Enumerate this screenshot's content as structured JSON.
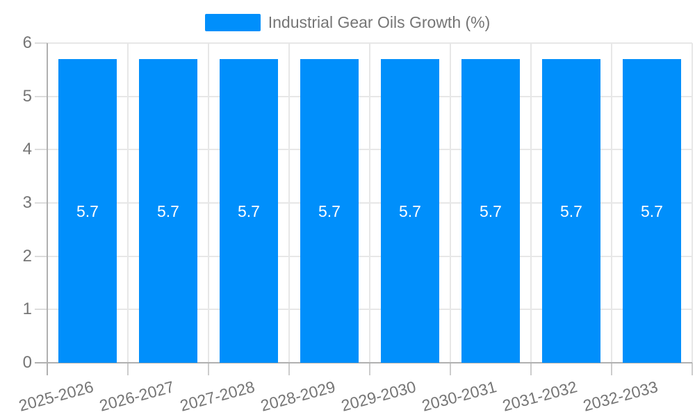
{
  "chart_data": {
    "type": "bar",
    "title": "",
    "xlabel": "",
    "ylabel": "",
    "legend": {
      "position": "top",
      "entries": [
        {
          "label": "Industrial Gear Oils Growth (%)",
          "color": "#008FFB"
        }
      ]
    },
    "categories": [
      "2025-2026",
      "2026-2027",
      "2027-2028",
      "2028-2029",
      "2029-2030",
      "2030-2031",
      "2031-2032",
      "2032-2033"
    ],
    "series": [
      {
        "name": "Industrial Gear Oils Growth (%)",
        "color": "#008FFB",
        "values": [
          5.7,
          5.7,
          5.7,
          5.7,
          5.7,
          5.7,
          5.7,
          5.7
        ],
        "value_labels": [
          "5.7",
          "5.7",
          "5.7",
          "5.7",
          "5.7",
          "5.7",
          "5.7",
          "5.7"
        ]
      }
    ],
    "ylim": [
      0,
      6
    ],
    "yticks": [
      "0",
      "1",
      "2",
      "3",
      "4",
      "5",
      "6"
    ],
    "grid": true,
    "colors": {
      "bar": "#008FFB",
      "grid_line": "#e7e7e7",
      "axis_line": "#b0b0b0",
      "label_text": "#757575",
      "value_label_text": "#ffffff",
      "background": "#ffffff"
    }
  }
}
